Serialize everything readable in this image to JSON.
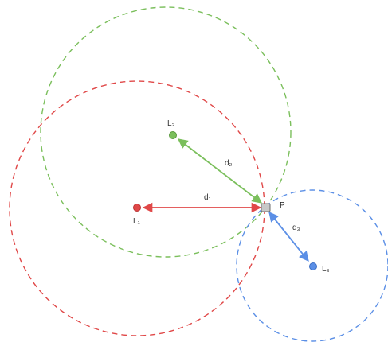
{
  "colors": {
    "red": "#e04848",
    "green": "#7bbf5c",
    "blue": "#5b8fe6",
    "point_fill": "#c8c8c8",
    "point_stroke": "#6e6e6e",
    "label_text": "#333333",
    "background": "#ffffff"
  },
  "labels": {
    "point": "P",
    "landmark_1": "L₁",
    "landmark_2": "L₂",
    "landmark_3": "L₃",
    "distance_1": "d₁",
    "distance_2": "d₂",
    "distance_3": "d₃"
  },
  "style": {
    "circle_line": "dashed",
    "arrow_heads": "both-ends"
  }
}
